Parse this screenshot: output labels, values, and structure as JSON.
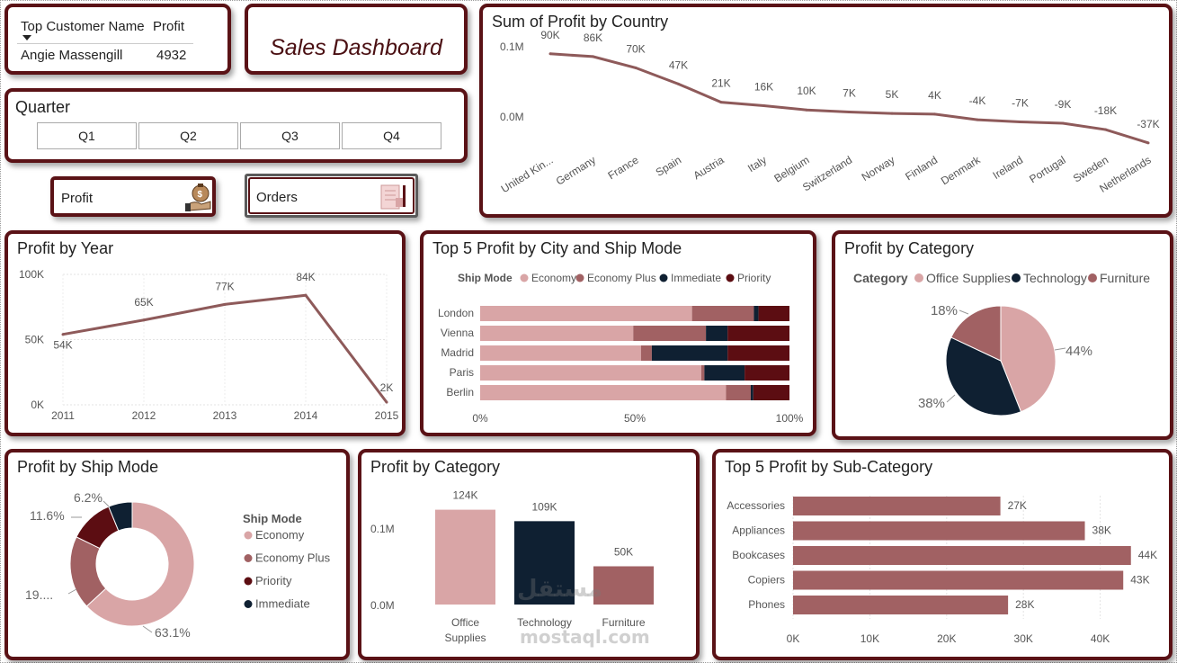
{
  "colors": {
    "border": "#5a1216",
    "line": "#8e5a5a",
    "economy": "#d9a5a6",
    "economy_plus": "#a16163",
    "immediate": "#0f2032",
    "priority": "#5c0d12",
    "office_supplies": "#d9a5a6",
    "technology": "#0f2032",
    "furniture": "#a16163"
  },
  "top_customer": {
    "header_name": "Top Customer Name",
    "header_profit": "Profit",
    "name": "Angie Massengill",
    "profit": "4932"
  },
  "dashboard_title": "Sales Dashboard",
  "quarter": {
    "title": "Quarter",
    "options": [
      "Q1",
      "Q2",
      "Q3",
      "Q4"
    ]
  },
  "nav_buttons": {
    "profit": "Profit",
    "orders": "Orders"
  },
  "country_chart": {
    "title": "Sum of Profit by Country",
    "y_ticks": [
      "0.1M",
      "0.0M"
    ],
    "labels": [
      "90K",
      "86K",
      "70K",
      "47K",
      "21K",
      "16K",
      "10K",
      "7K",
      "5K",
      "4K",
      "-4K",
      "-7K",
      "-9K",
      "-18K",
      "-37K"
    ],
    "chart_data": {
      "type": "line",
      "categories": [
        "United Kin...",
        "Germany",
        "France",
        "Spain",
        "Austria",
        "Italy",
        "Belgium",
        "Switzerland",
        "Norway",
        "Finland",
        "Denmark",
        "Ireland",
        "Portugal",
        "Sweden",
        "Netherlands"
      ],
      "values": [
        90000,
        86000,
        70000,
        47000,
        21000,
        16000,
        10000,
        7000,
        5000,
        4000,
        -4000,
        -7000,
        -9000,
        -18000,
        -37000
      ]
    }
  },
  "year_chart": {
    "title": "Profit by Year",
    "y_ticks": [
      "100K",
      "50K",
      "0K"
    ],
    "labels": [
      "54K",
      "65K",
      "77K",
      "84K",
      "2K"
    ],
    "chart_data": {
      "type": "line",
      "categories": [
        "2011",
        "2012",
        "2013",
        "2014",
        "2015"
      ],
      "values": [
        54000,
        65000,
        77000,
        84000,
        2000
      ],
      "ylim": [
        0,
        100000
      ]
    }
  },
  "city_chart": {
    "title": "Top 5 Profit by City and Ship Mode",
    "legend_title": "Ship Mode",
    "x_ticks": [
      "0%",
      "50%",
      "100%"
    ],
    "chart_data": {
      "type": "bar",
      "stacked": "100%",
      "categories": [
        "London",
        "Vienna",
        "Madrid",
        "Paris",
        "Berlin"
      ],
      "series": [
        {
          "name": "Economy",
          "values": [
            68.5,
            49.5,
            52.0,
            71.5,
            79.5
          ]
        },
        {
          "name": "Economy Plus",
          "values": [
            20.0,
            23.5,
            3.5,
            1.0,
            8.0
          ]
        },
        {
          "name": "Immediate",
          "values": [
            1.5,
            7.0,
            24.5,
            13.0,
            0.8
          ]
        },
        {
          "name": "Priority",
          "values": [
            10.0,
            20.0,
            20.0,
            14.5,
            11.7
          ]
        }
      ]
    }
  },
  "category_pie": {
    "title": "Profit by Category",
    "legend_title": "Category",
    "labels": [
      "44%",
      "38%",
      "18%"
    ],
    "chart_data": {
      "type": "pie",
      "categories": [
        "Office Supplies",
        "Technology",
        "Furniture"
      ],
      "values": [
        44,
        38,
        18
      ]
    }
  },
  "ship_donut": {
    "title": "Profit by Ship Mode",
    "legend_title": "Ship Mode",
    "legend_items": [
      "Economy",
      "Economy Plus",
      "Priority",
      "Immediate"
    ],
    "labels": [
      "63.1%",
      "19....",
      "11.6%",
      "6.2%"
    ],
    "chart_data": {
      "type": "pie",
      "categories": [
        "Economy",
        "Economy Plus",
        "Priority",
        "Immediate"
      ],
      "values": [
        63.1,
        19.1,
        11.6,
        6.2
      ]
    }
  },
  "category_bar": {
    "title": "Profit by Category",
    "y_ticks": [
      "0.1M",
      "0.0M"
    ],
    "labels": [
      "124K",
      "109K",
      "50K"
    ],
    "x_labels": [
      [
        "Office",
        "Supplies"
      ],
      [
        "Technology"
      ],
      [
        "Furniture"
      ]
    ],
    "chart_data": {
      "type": "bar",
      "categories": [
        "Office Supplies",
        "Technology",
        "Furniture"
      ],
      "values": [
        124000,
        109000,
        50000
      ]
    }
  },
  "subcat_chart": {
    "title": "Top 5 Profit by Sub-Category",
    "x_ticks": [
      "0K",
      "10K",
      "20K",
      "30K",
      "40K"
    ],
    "labels": [
      "27K",
      "38K",
      "44K",
      "43K",
      "28K"
    ],
    "chart_data": {
      "type": "bar",
      "orientation": "horizontal",
      "categories": [
        "Accessories",
        "Appliances",
        "Bookcases",
        "Copiers",
        "Phones"
      ],
      "values": [
        27000,
        38000,
        44000,
        43000,
        28000
      ],
      "xlim": [
        0,
        45000
      ]
    }
  },
  "watermark": {
    "arabic": "مستقل",
    "latin": "mostaql.com"
  }
}
